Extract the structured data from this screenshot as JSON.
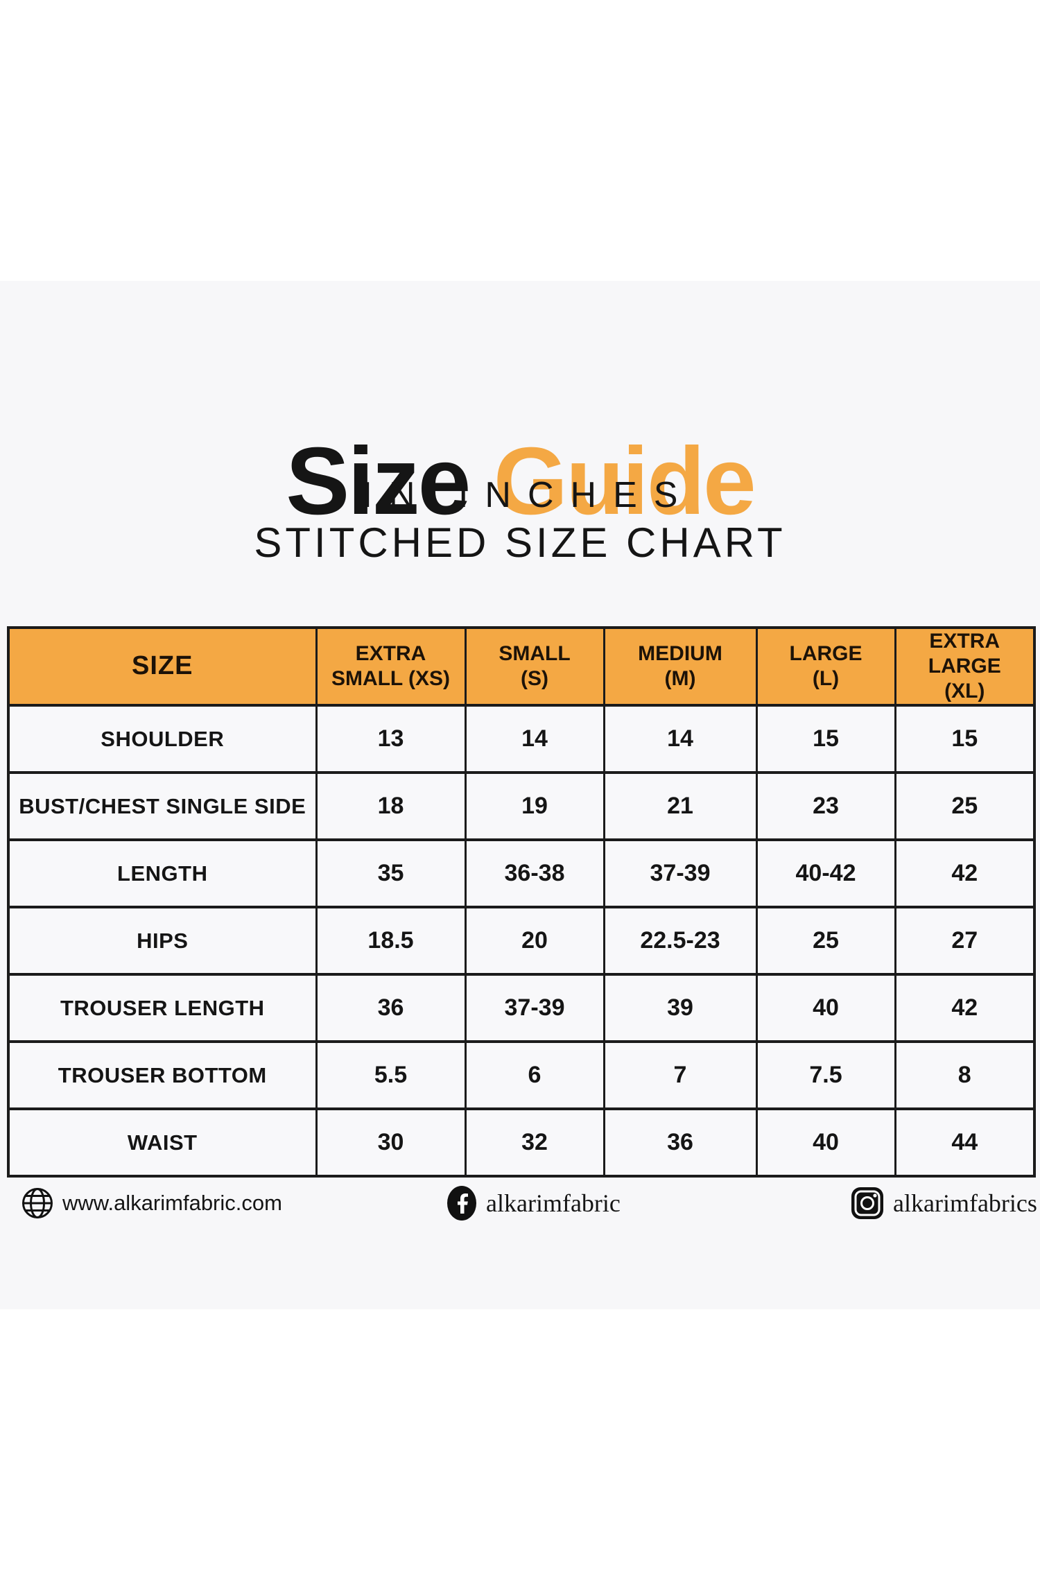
{
  "title": {
    "word_black": "Size",
    "word_orange": "Guide",
    "subtitle1": "IN INCHES",
    "subtitle2": "STITCHED SIZE CHART"
  },
  "colors": {
    "accent_orange": "#F4A844",
    "text_black": "#151515",
    "panel_background": "#F7F7F9",
    "table_border": "#1B1B1B"
  },
  "chart_data": {
    "type": "table",
    "title": "Size Guide in Inches - Stitched Size Chart",
    "columns": [
      "SIZE",
      "EXTRA SMALL (XS)",
      "SMALL (S)",
      "MEDIUM (M)",
      "LARGE (L)",
      "EXTRA LARGE (XL)"
    ],
    "column_lines": [
      [
        "SIZE"
      ],
      [
        "EXTRA",
        "SMALL (XS)"
      ],
      [
        "SMALL",
        "(S)"
      ],
      [
        "MEDIUM",
        "(M)"
      ],
      [
        "LARGE",
        "(L)"
      ],
      [
        "EXTRA LARGE",
        "(XL)"
      ]
    ],
    "rows": [
      {
        "label": "SHOULDER",
        "values": [
          "13",
          "14",
          "14",
          "15",
          "15"
        ]
      },
      {
        "label": "BUST/CHEST SINGLE SIDE",
        "values": [
          "18",
          "19",
          "21",
          "23",
          "25"
        ]
      },
      {
        "label": "LENGTH",
        "values": [
          "35",
          "36-38",
          "37-39",
          "40-42",
          "42"
        ]
      },
      {
        "label": "HIPS",
        "values": [
          "18.5",
          "20",
          "22.5-23",
          "25",
          "27"
        ]
      },
      {
        "label": "TROUSER LENGTH",
        "values": [
          "36",
          "37-39",
          "39",
          "40",
          "42"
        ]
      },
      {
        "label": "TROUSER BOTTOM",
        "values": [
          "5.5",
          "6",
          "7",
          "7.5",
          "8"
        ]
      },
      {
        "label": "WAIST",
        "values": [
          "30",
          "32",
          "36",
          "40",
          "44"
        ]
      }
    ]
  },
  "footer": {
    "website": {
      "icon": "globe-icon",
      "label": "www.alkarimfabric.com"
    },
    "facebook": {
      "icon": "facebook-icon",
      "label": "alkarimfabric"
    },
    "instagram": {
      "icon": "instagram-icon",
      "label": "alkarimfabrics"
    }
  }
}
